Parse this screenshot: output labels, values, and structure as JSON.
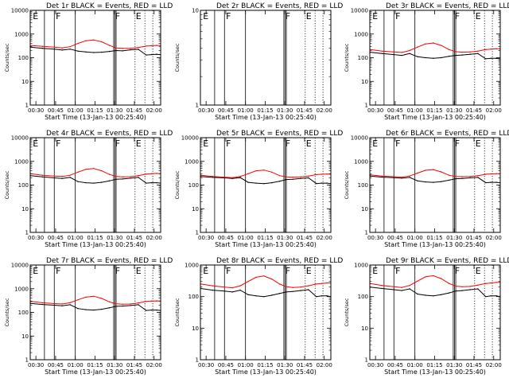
{
  "figure": {
    "x_ticks": [
      "00:30",
      "00:45",
      "01:00",
      "01:15",
      "01:30",
      "01:45",
      "02:00"
    ],
    "x_tick_values_min": [
      30,
      45,
      60,
      75,
      90,
      105,
      120
    ],
    "colors": {
      "events": "#000000",
      "lld": "#ff0000",
      "axes": "#000000"
    }
  },
  "chart_data": [
    {
      "type": "line",
      "title": "Det 1r BLACK = Events, RED = LLD",
      "xlabel": "Start Time (13-Jan-13 00:25:40)",
      "ylabel": "Counts/sec",
      "yscale": "log",
      "ylim": [
        1,
        10000
      ],
      "y_ticks": [
        "1",
        "10",
        "100",
        "1000",
        "10000"
      ],
      "xlim_min": [
        25.67,
        125
      ],
      "has_data": true,
      "flags": [
        "E",
        "F",
        "F",
        "E"
      ],
      "series": [
        {
          "name": "Events",
          "color": "#000000",
          "x": [
            26,
            35,
            44,
            50,
            56,
            62,
            68,
            74,
            80,
            86,
            91,
            96,
            102,
            108,
            114,
            118,
            122,
            125
          ],
          "y": [
            280,
            250,
            230,
            210,
            230,
            190,
            175,
            165,
            170,
            185,
            200,
            195,
            215,
            225,
            130,
            135,
            140,
            135
          ]
        },
        {
          "name": "LLD",
          "color": "#ff0000",
          "x": [
            26,
            35,
            44,
            50,
            56,
            62,
            68,
            74,
            80,
            86,
            91,
            96,
            102,
            108,
            114,
            118,
            122,
            125
          ],
          "y": [
            330,
            300,
            280,
            260,
            290,
            400,
            520,
            560,
            470,
            330,
            260,
            250,
            250,
            270,
            310,
            320,
            330,
            330
          ]
        }
      ]
    },
    {
      "type": "line",
      "title": "Det 2r BLACK = Events, RED = LLD",
      "xlabel": "Start Time (13-Jan-13 00:25:40)",
      "ylabel": "Counts/sec",
      "yscale": "log",
      "ylim": [
        1,
        10
      ],
      "y_ticks": [
        "1",
        "10"
      ],
      "xlim_min": [
        25.67,
        125
      ],
      "has_data": false,
      "flags": [
        "E",
        "F",
        "F",
        "E"
      ],
      "series": []
    },
    {
      "type": "line",
      "title": "Det 3r BLACK = Events, RED = LLD",
      "xlabel": "Start Time (13-Jan-13 00:25:40)",
      "ylabel": "Counts/sec",
      "yscale": "log",
      "ylim": [
        1,
        10000
      ],
      "y_ticks": [
        "1",
        "10",
        "100",
        "1000",
        "10000"
      ],
      "xlim_min": [
        25.67,
        125
      ],
      "has_data": true,
      "flags": [
        "E",
        "F",
        "F",
        "E"
      ],
      "series": [
        {
          "name": "Events",
          "color": "#000000",
          "x": [
            26,
            35,
            44,
            50,
            56,
            62,
            68,
            74,
            80,
            86,
            91,
            96,
            102,
            108,
            114,
            118,
            122,
            125
          ],
          "y": [
            170,
            150,
            135,
            125,
            150,
            110,
            100,
            95,
            100,
            115,
            125,
            130,
            140,
            150,
            90,
            95,
            95,
            90
          ]
        },
        {
          "name": "LLD",
          "color": "#ff0000",
          "x": [
            26,
            35,
            44,
            50,
            56,
            62,
            68,
            74,
            80,
            86,
            91,
            96,
            102,
            108,
            114,
            118,
            122,
            125
          ],
          "y": [
            220,
            190,
            175,
            165,
            200,
            280,
            380,
            420,
            330,
            220,
            180,
            170,
            175,
            190,
            220,
            230,
            240,
            240
          ]
        }
      ]
    },
    {
      "type": "line",
      "title": "Det 4r BLACK = Events, RED = LLD",
      "xlabel": "Start Time (13-Jan-13 00:25:40)",
      "ylabel": "Counts/sec",
      "yscale": "log",
      "ylim": [
        1,
        10000
      ],
      "y_ticks": [
        "1",
        "10",
        "100",
        "1000",
        "10000"
      ],
      "xlim_min": [
        25.67,
        125
      ],
      "has_data": true,
      "flags": [
        "E",
        "F",
        "F",
        "E"
      ],
      "series": [
        {
          "name": "Events",
          "color": "#000000",
          "x": [
            26,
            35,
            44,
            50,
            56,
            62,
            68,
            74,
            80,
            86,
            91,
            96,
            102,
            108,
            114,
            118,
            122,
            125
          ],
          "y": [
            250,
            220,
            200,
            190,
            210,
            140,
            125,
            120,
            130,
            150,
            175,
            180,
            195,
            210,
            120,
            125,
            125,
            120
          ]
        },
        {
          "name": "LLD",
          "color": "#ff0000",
          "x": [
            26,
            35,
            44,
            50,
            56,
            62,
            68,
            74,
            80,
            86,
            91,
            96,
            102,
            108,
            114,
            118,
            122,
            125
          ],
          "y": [
            300,
            260,
            240,
            230,
            260,
            350,
            460,
            500,
            400,
            280,
            230,
            220,
            225,
            250,
            290,
            300,
            310,
            300
          ]
        }
      ]
    },
    {
      "type": "line",
      "title": "Det 5r BLACK = Events, RED = LLD",
      "xlabel": "Start Time (13-Jan-13 00:25:40)",
      "ylabel": "Counts/sec",
      "yscale": "log",
      "ylim": [
        1,
        10000
      ],
      "y_ticks": [
        "1",
        "10",
        "100",
        "1000",
        "10000"
      ],
      "xlim_min": [
        25.67,
        125
      ],
      "has_data": true,
      "flags": [
        "E",
        "F",
        "F",
        "E"
      ],
      "series": [
        {
          "name": "Events",
          "color": "#000000",
          "x": [
            26,
            35,
            44,
            50,
            56,
            62,
            68,
            74,
            80,
            86,
            91,
            96,
            102,
            108,
            114,
            118,
            122,
            125
          ],
          "y": [
            230,
            210,
            200,
            190,
            205,
            130,
            120,
            115,
            125,
            145,
            170,
            175,
            190,
            200,
            115,
            120,
            120,
            115
          ]
        },
        {
          "name": "LLD",
          "color": "#ff0000",
          "x": [
            26,
            35,
            44,
            50,
            56,
            62,
            68,
            74,
            80,
            86,
            91,
            96,
            102,
            108,
            114,
            118,
            122,
            125
          ],
          "y": [
            260,
            230,
            215,
            205,
            230,
            300,
            400,
            430,
            350,
            250,
            220,
            215,
            220,
            240,
            275,
            285,
            290,
            290
          ]
        }
      ]
    },
    {
      "type": "line",
      "title": "Det 6r BLACK = Events, RED = LLD",
      "xlabel": "Start Time (13-Jan-13 00:25:40)",
      "ylabel": "Counts/sec",
      "yscale": "log",
      "ylim": [
        1,
        10000
      ],
      "y_ticks": [
        "1",
        "10",
        "100",
        "1000",
        "10000"
      ],
      "xlim_min": [
        25.67,
        125
      ],
      "has_data": true,
      "flags": [
        "E",
        "F",
        "F",
        "E"
      ],
      "series": [
        {
          "name": "Events",
          "color": "#000000",
          "x": [
            26,
            35,
            44,
            50,
            56,
            62,
            68,
            74,
            80,
            86,
            91,
            96,
            102,
            108,
            114,
            118,
            122,
            125
          ],
          "y": [
            240,
            215,
            205,
            195,
            210,
            150,
            135,
            130,
            140,
            160,
            185,
            190,
            200,
            210,
            125,
            130,
            130,
            125
          ]
        },
        {
          "name": "LLD",
          "color": "#ff0000",
          "x": [
            26,
            35,
            44,
            50,
            56,
            62,
            68,
            74,
            80,
            86,
            91,
            96,
            102,
            108,
            114,
            118,
            122,
            125
          ],
          "y": [
            270,
            240,
            225,
            215,
            240,
            320,
            420,
            450,
            360,
            260,
            230,
            225,
            230,
            250,
            285,
            295,
            300,
            300
          ]
        }
      ]
    },
    {
      "type": "line",
      "title": "Det 7r BLACK = Events, RED = LLD",
      "xlabel": "Start Time (13-Jan-13 00:25:40)",
      "ylabel": "Counts/sec",
      "yscale": "log",
      "ylim": [
        1,
        10000
      ],
      "y_ticks": [
        "1",
        "10",
        "100",
        "1000",
        "10000"
      ],
      "xlim_min": [
        25.67,
        125
      ],
      "has_data": true,
      "flags": [
        "E",
        "F",
        "F",
        "E"
      ],
      "series": [
        {
          "name": "Events",
          "color": "#000000",
          "x": [
            26,
            35,
            44,
            50,
            56,
            62,
            68,
            74,
            80,
            86,
            91,
            96,
            102,
            108,
            114,
            118,
            122,
            125
          ],
          "y": [
            240,
            215,
            200,
            190,
            210,
            145,
            130,
            125,
            135,
            155,
            180,
            185,
            195,
            210,
            120,
            125,
            125,
            120
          ]
        },
        {
          "name": "LLD",
          "color": "#ff0000",
          "x": [
            26,
            35,
            44,
            50,
            56,
            62,
            68,
            74,
            80,
            86,
            91,
            96,
            102,
            108,
            114,
            118,
            122,
            125
          ],
          "y": [
            290,
            255,
            235,
            225,
            255,
            340,
            440,
            480,
            390,
            275,
            230,
            220,
            225,
            250,
            290,
            300,
            305,
            300
          ]
        }
      ]
    },
    {
      "type": "line",
      "title": "Det 8r BLACK = Events, RED = LLD",
      "xlabel": "Start Time (13-Jan-13 00:25:40)",
      "ylabel": "Counts/sec",
      "yscale": "log",
      "ylim": [
        1,
        1000
      ],
      "y_ticks": [
        "1",
        "10",
        "100",
        "1000"
      ],
      "xlim_min": [
        25.67,
        125
      ],
      "has_data": true,
      "flags": [
        "E",
        "F",
        "F",
        "E"
      ],
      "series": [
        {
          "name": "Events",
          "color": "#000000",
          "x": [
            26,
            35,
            44,
            50,
            56,
            62,
            68,
            74,
            80,
            86,
            91,
            96,
            102,
            108,
            114,
            118,
            122,
            125
          ],
          "y": [
            180,
            160,
            150,
            140,
            160,
            115,
            105,
            100,
            110,
            125,
            140,
            145,
            155,
            165,
            100,
            105,
            105,
            100
          ]
        },
        {
          "name": "LLD",
          "color": "#ff0000",
          "x": [
            26,
            35,
            44,
            50,
            56,
            62,
            68,
            74,
            80,
            86,
            91,
            96,
            102,
            108,
            114,
            118,
            122,
            125
          ],
          "y": [
            250,
            220,
            200,
            190,
            220,
            300,
            410,
            450,
            360,
            250,
            205,
            195,
            200,
            220,
            250,
            260,
            270,
            270
          ]
        }
      ]
    },
    {
      "type": "line",
      "title": "Det 9r BLACK = Events, RED = LLD",
      "xlabel": "Start Time (13-Jan-13 00:25:40)",
      "ylabel": "Counts/sec",
      "yscale": "log",
      "ylim": [
        1,
        1000
      ],
      "y_ticks": [
        "1",
        "10",
        "100",
        "1000"
      ],
      "xlim_min": [
        25.67,
        125
      ],
      "has_data": true,
      "flags": [
        "E",
        "F",
        "F",
        "E"
      ],
      "series": [
        {
          "name": "Events",
          "color": "#000000",
          "x": [
            26,
            35,
            44,
            50,
            56,
            62,
            68,
            74,
            80,
            86,
            91,
            96,
            102,
            108,
            114,
            118,
            122,
            125
          ],
          "y": [
            200,
            180,
            165,
            155,
            175,
            120,
            110,
            105,
            115,
            130,
            150,
            155,
            165,
            175,
            100,
            105,
            105,
            100
          ]
        },
        {
          "name": "LLD",
          "color": "#ff0000",
          "x": [
            26,
            35,
            44,
            50,
            56,
            62,
            68,
            74,
            80,
            86,
            91,
            96,
            102,
            108,
            114,
            118,
            122,
            125
          ],
          "y": [
            260,
            225,
            205,
            195,
            225,
            310,
            420,
            460,
            370,
            260,
            215,
            205,
            210,
            230,
            260,
            270,
            280,
            280
          ]
        }
      ]
    }
  ]
}
